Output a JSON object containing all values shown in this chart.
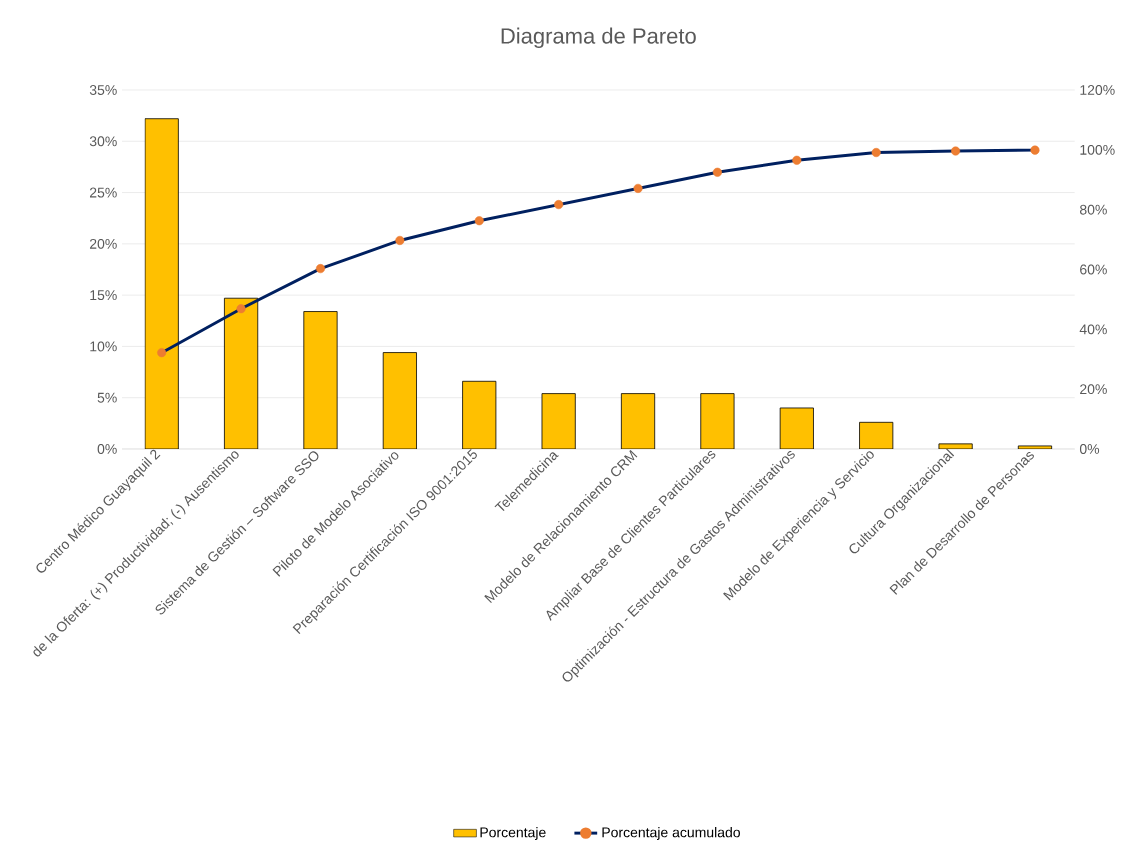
{
  "chart_data": {
    "type": "bar",
    "title": "Diagrama de Pareto",
    "categories": [
      "Centro Médico Guayaquil 2",
      "de la Oferta: (+) Productividad; (-) Ausentismo",
      "Sistema de Gestión – Software SSO",
      "Piloto de Modelo Asociativo",
      "Preparación Certificación ISO 9001:2015",
      "Telemedicina",
      "Modelo de Relacionamiento CRM",
      "Ampliar Base de Clientes Particulares",
      "Optimización - Estructura de Gastos Administrativos",
      "Modelo de Experiencia y Servicio",
      "Cultura Organizacional",
      "Plan de Desarrollo de Personas"
    ],
    "series": [
      {
        "name": "Porcentaje",
        "color": "#ffc000",
        "values": [
          32.2,
          14.7,
          13.4,
          9.4,
          6.6,
          5.4,
          5.4,
          5.4,
          4.0,
          2.6,
          0.5,
          0.3
        ]
      },
      {
        "name": "Porcentaje acumulado",
        "type": "line",
        "axis": "y2",
        "color": "#002060",
        "marker": "circle",
        "colors": [
          "#ed7d31",
          "#ed7d31",
          "#ed7d31",
          "#ed7d31",
          "#ed7d31",
          "#ed7d31",
          "#ed7d31",
          "#ed7d31",
          "#ed7d31",
          "#ed7d31",
          "#ed7d31",
          "#ed7d31"
        ],
        "values": [
          32.2,
          46.9,
          60.3,
          69.7,
          76.3,
          81.7,
          87.1,
          92.5,
          96.5,
          99.1,
          99.6,
          99.9
        ]
      }
    ],
    "ylim": [
      0,
      35
    ],
    "yticks": [
      {
        "value": 0,
        "label": "0%"
      },
      {
        "value": 5,
        "label": "5%"
      },
      {
        "value": 10,
        "label": "10%"
      },
      {
        "value": 15,
        "label": "15%"
      },
      {
        "value": 20,
        "label": "20%"
      },
      {
        "value": 25,
        "label": "25%"
      },
      {
        "value": 30,
        "label": "30%"
      },
      {
        "value": 35,
        "label": "35%"
      }
    ],
    "y2lim": [
      0,
      120
    ],
    "y2ticks": [
      {
        "value": 0,
        "label": "0%"
      },
      {
        "value": 20,
        "label": "20%"
      },
      {
        "value": 40,
        "label": "40%"
      },
      {
        "value": 60,
        "label": "60%"
      },
      {
        "value": 80,
        "label": "80%"
      },
      {
        "value": 100,
        "label": "100%"
      },
      {
        "value": 120,
        "label": "120%"
      }
    ],
    "grid": "y",
    "legend": "bottom"
  }
}
